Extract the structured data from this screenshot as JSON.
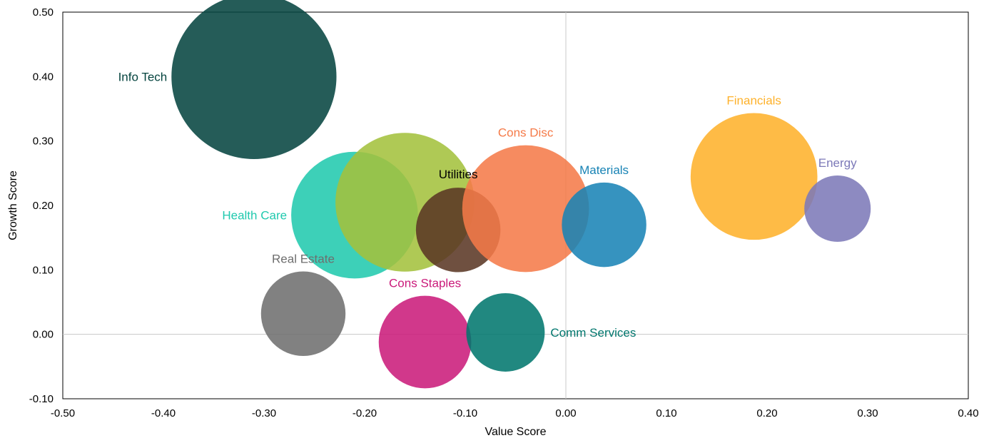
{
  "chart_data": {
    "type": "scatter",
    "subtype": "bubble",
    "title": "",
    "xlabel": "Value Score",
    "ylabel": "Growth Score",
    "xlim": [
      -0.5,
      0.4
    ],
    "ylim": [
      -0.1,
      0.5
    ],
    "x_ticks": [
      "-0.50",
      "-0.40",
      "-0.30",
      "-0.20",
      "-0.10",
      "0.00",
      "0.10",
      "0.20",
      "0.30",
      "0.40"
    ],
    "y_ticks": [
      "-0.10",
      "0.00",
      "0.10",
      "0.20",
      "0.30",
      "0.40",
      "0.50"
    ],
    "reference_lines": {
      "x": 0,
      "y": 0
    },
    "grid": false,
    "legend": "none",
    "series": [
      {
        "name": "Info Tech",
        "x": -0.31,
        "y": 0.4,
        "size": 0.082,
        "color": "#05443f",
        "label_position": "left"
      },
      {
        "name": "Health Care",
        "x": -0.21,
        "y": 0.185,
        "size": 0.063,
        "color": "#20c9ae",
        "label_position": "left"
      },
      {
        "name": "",
        "x": -0.16,
        "y": 0.205,
        "size": 0.069,
        "color": "#a3c13c",
        "label_position": "none"
      },
      {
        "name": "Utilities",
        "x": -0.107,
        "y": 0.162,
        "size": 0.042,
        "color": "#5a3624",
        "label_position": "top-left"
      },
      {
        "name": "Cons Disc",
        "x": -0.04,
        "y": 0.195,
        "size": 0.063,
        "color": "#f57a48",
        "label_position": "top"
      },
      {
        "name": "Materials",
        "x": 0.038,
        "y": 0.17,
        "size": 0.042,
        "color": "#1883b5",
        "label_position": "top"
      },
      {
        "name": "Financials",
        "x": 0.187,
        "y": 0.245,
        "size": 0.063,
        "color": "#feb12a",
        "label_position": "top"
      },
      {
        "name": "Energy",
        "x": 0.27,
        "y": 0.195,
        "size": 0.033,
        "color": "#7c79b8",
        "label_position": "top"
      },
      {
        "name": "Real Estate",
        "x": -0.261,
        "y": 0.032,
        "size": 0.042,
        "color": "#6e6e6e",
        "label_position": "top"
      },
      {
        "name": "Cons Staples",
        "x": -0.14,
        "y": -0.012,
        "size": 0.046,
        "color": "#ca1a7a",
        "label_position": "top"
      },
      {
        "name": "Comm Services",
        "x": -0.06,
        "y": 0.003,
        "size": 0.039,
        "color": "#00766d",
        "label_position": "right"
      }
    ]
  }
}
